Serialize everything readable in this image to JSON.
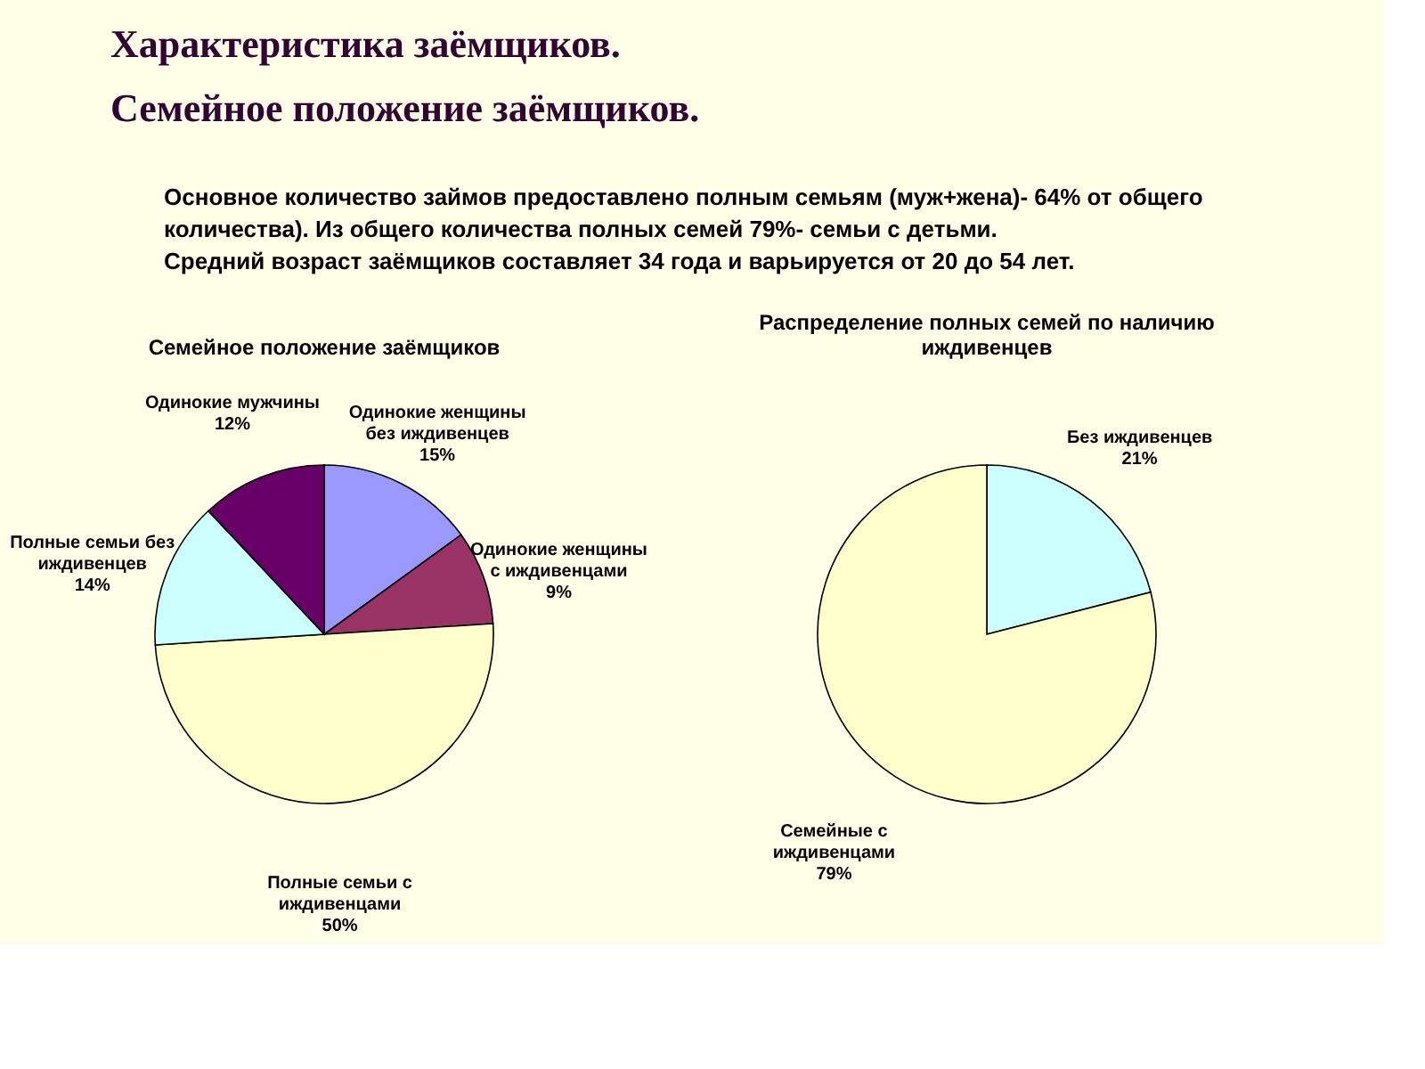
{
  "chart_data": [
    {
      "type": "pie",
      "title": "Семейное положение заёмщиков",
      "annotations": [
        "Характеристика заёмщиков.",
        "Семейное положение заёмщиков.",
        "Основное количество займов предоставлено полным семьям (муж+жена)- 64% от общего количества). Из общего количества полных семей 79%- семьи с детьми.",
        "Средний возраст заёмщиков составляет 34 года и варьируется от 20 до 54 лет."
      ],
      "categories": [
        "Одинокие женщины без иждивенцев",
        "Одинокие женщины с иждивенцами",
        "Полные семьи с иждивенцами",
        "Полные семьи без иждивенцев",
        "Одинокие мужчины"
      ],
      "values": [
        15,
        9,
        50,
        14,
        12
      ],
      "colors": [
        "#9999ff",
        "#993366",
        "#ffffcc",
        "#ccffff",
        "#660066"
      ],
      "value_labels": [
        "15%",
        "9%",
        "50%",
        "14%",
        "12%"
      ]
    },
    {
      "type": "pie",
      "title": "Распределение полных семей по наличию иждивенцев",
      "categories": [
        "Без иждивенцев",
        "Семейные с иждивенцами"
      ],
      "values": [
        21,
        79
      ],
      "colors": [
        "#ccffff",
        "#ffffcc"
      ],
      "value_labels": [
        "21%",
        "79%"
      ]
    }
  ]
}
